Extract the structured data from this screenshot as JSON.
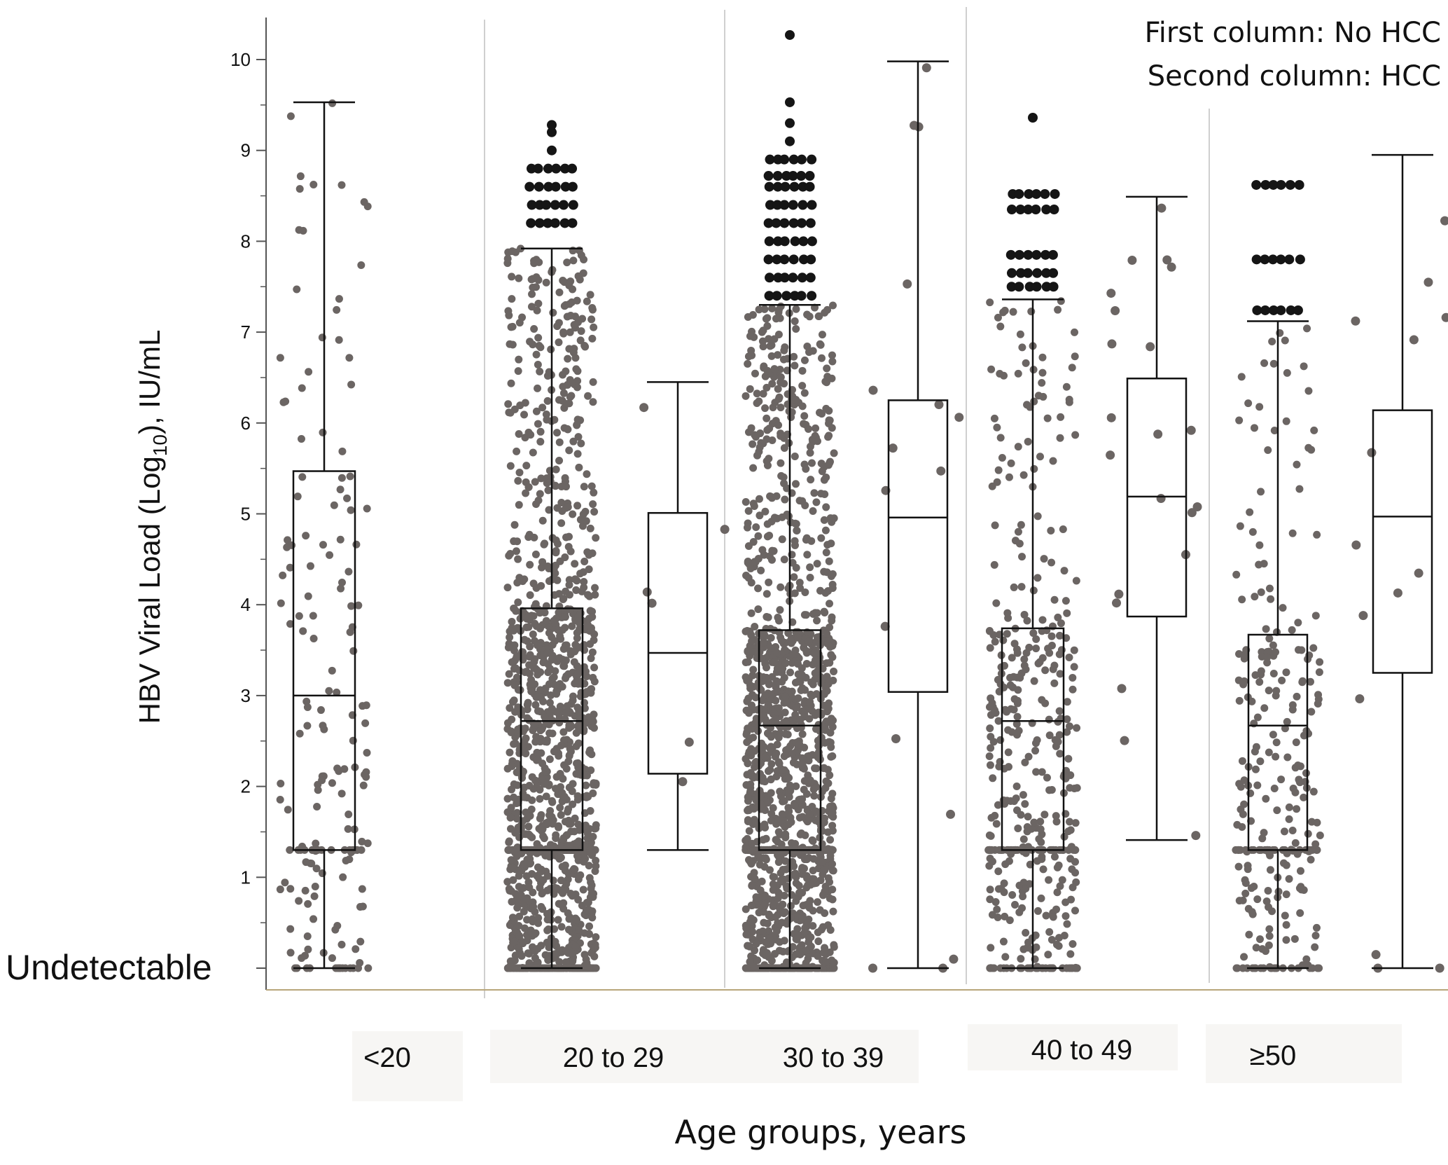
{
  "chart_data": {
    "type": "box",
    "xlabel": "Age groups, years",
    "ylabel": {
      "prefix": "HBV Viral Load (Log",
      "subscript": "10",
      "suffix": "), IU/mL"
    },
    "ylim": [
      0,
      10.4
    ],
    "yticks": [
      1,
      2,
      3,
      4,
      5,
      6,
      7,
      8,
      9,
      10
    ],
    "undetectable_label": "Undetectable",
    "legend": [
      "First column: No HCC",
      "Second column: HCC"
    ],
    "categories": [
      "<20",
      "20 to 29",
      "30 to 39",
      "40 to 49",
      "≥50"
    ],
    "series": [
      {
        "name": "No HCC",
        "color": "#6b6563"
      },
      {
        "name": "HCC",
        "color": "#6b6563"
      }
    ],
    "boxes": [
      {
        "category": "<20",
        "series": "No HCC",
        "q1": 1.3,
        "median": 3.0,
        "q3": 5.47,
        "whisker_low": 0,
        "whisker_high": 9.53,
        "outliers": [],
        "n_points": 170
      },
      {
        "category": "20 to 29",
        "series": "No HCC",
        "q1": 1.3,
        "median": 2.72,
        "q3": 3.96,
        "whisker_low": 0,
        "whisker_high": 7.92,
        "outliers": [
          8.2,
          8.4,
          8.6,
          8.8,
          9.0,
          9.2,
          9.28
        ],
        "n_points": 1400
      },
      {
        "category": "20 to 29",
        "series": "HCC",
        "q1": 2.14,
        "median": 3.47,
        "q3": 5.01,
        "whisker_low": 1.3,
        "whisker_high": 6.45,
        "outliers": [],
        "n_points": 6
      },
      {
        "category": "30 to 39",
        "series": "No HCC",
        "q1": 1.3,
        "median": 2.67,
        "q3": 3.72,
        "whisker_low": 0,
        "whisker_high": 7.3,
        "outliers": [
          7.4,
          7.6,
          7.8,
          8.0,
          8.2,
          8.4,
          8.6,
          8.72,
          8.9,
          9.1,
          9.3,
          9.53,
          10.27
        ],
        "n_points": 1500
      },
      {
        "category": "30 to 39",
        "series": "HCC",
        "q1": 3.04,
        "median": 4.96,
        "q3": 6.25,
        "whisker_low": 0,
        "whisker_high": 9.98,
        "outliers": [],
        "n_points": 16
      },
      {
        "category": "40 to 49",
        "series": "No HCC",
        "q1": 1.3,
        "median": 2.72,
        "q3": 3.74,
        "whisker_low": 0,
        "whisker_high": 7.36,
        "outliers": [
          7.5,
          7.65,
          7.85,
          8.35,
          8.52,
          9.36
        ],
        "n_points": 420
      },
      {
        "category": "40 to 49",
        "series": "HCC",
        "q1": 3.87,
        "median": 5.19,
        "q3": 6.49,
        "whisker_low": 1.41,
        "whisker_high": 8.49,
        "outliers": [],
        "n_points": 21
      },
      {
        "category": "≥50",
        "series": "No HCC",
        "q1": 1.3,
        "median": 2.67,
        "q3": 3.67,
        "whisker_low": 0,
        "whisker_high": 7.12,
        "outliers": [
          7.24,
          7.8,
          8.62
        ],
        "n_points": 260
      },
      {
        "category": "≥50",
        "series": "HCC",
        "q1": 3.25,
        "median": 4.97,
        "q3": 6.14,
        "whisker_low": 0,
        "whisker_high": 8.95,
        "outliers": [],
        "n_points": 14
      }
    ],
    "grid": false,
    "legend_position": "top-right"
  }
}
